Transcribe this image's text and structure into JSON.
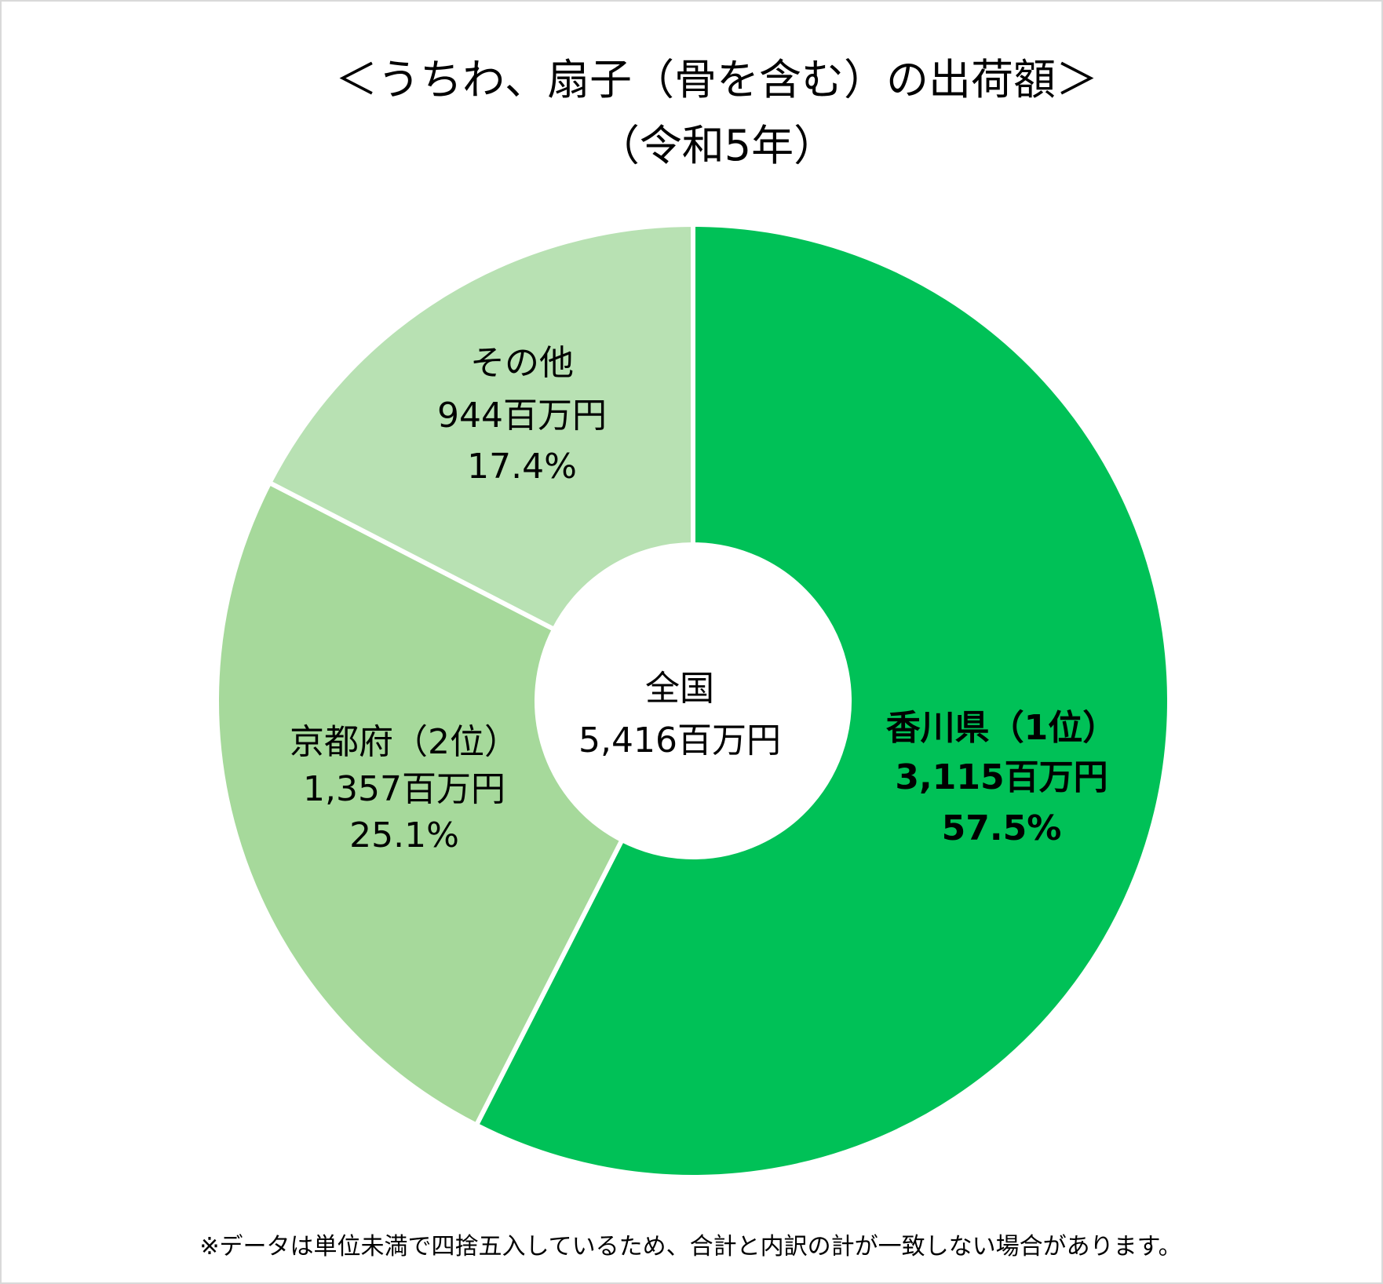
{
  "chart_data": {
    "type": "pie",
    "donut": true,
    "title": "＜うちわ、扇子（骨を含む）の出荷額＞",
    "subtitle": "（令和5年）",
    "center_label": {
      "line1": "全国",
      "line2": "5,416百万円"
    },
    "total": 5416,
    "unit": "百万円",
    "slices": [
      {
        "name": "香川県（1位）",
        "value": 3115,
        "value_label": "3,115百万円",
        "percent": 57.5,
        "percent_label": "57.5%",
        "color": "#00C157"
      },
      {
        "name": "京都府（2位）",
        "value": 1357,
        "value_label": "1,357百万円",
        "percent": 25.1,
        "percent_label": "25.1%",
        "color": "#A6D99B"
      },
      {
        "name": "その他",
        "value": 944,
        "value_label": "944百万円",
        "percent": 17.4,
        "percent_label": "17.4%",
        "color": "#B8E1B3"
      }
    ],
    "footnote": "※データは単位未満で四捨五入しているため、合計と内訳の計が一致しない場合があります。"
  }
}
